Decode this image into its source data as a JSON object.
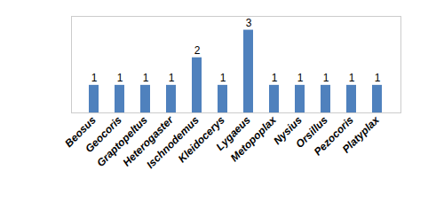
{
  "chart_data": {
    "type": "bar",
    "categories": [
      "Beosus",
      "Geocoris",
      "Graptopeltus",
      "Heterogaster",
      "Ischnodemus",
      "Kleidocerys",
      "Lygaeus",
      "Metopoplax",
      "Nysius",
      "Orsillus",
      "Pezocoris",
      "Platyplax"
    ],
    "values": [
      1,
      1,
      1,
      1,
      2,
      1,
      3,
      1,
      1,
      1,
      1,
      1
    ],
    "color": "#4f81bd",
    "ylim": [
      0,
      3.5
    ],
    "data_labels": true,
    "tick_labels": "x",
    "grid": false
  }
}
